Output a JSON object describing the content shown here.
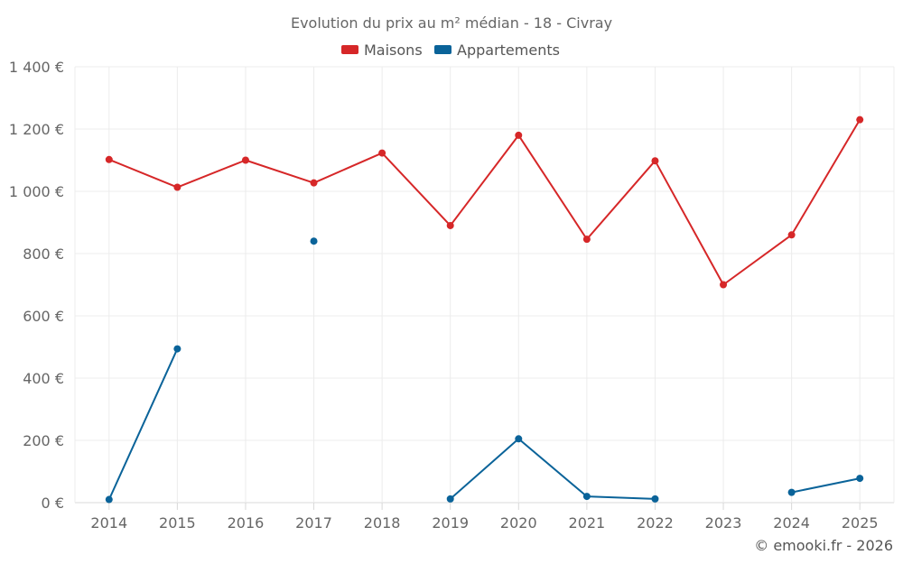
{
  "chart_data": {
    "type": "line",
    "title": "Evolution du prix au m² médian - 18 - Civray",
    "categories": [
      "2014",
      "2015",
      "2016",
      "2017",
      "2018",
      "2019",
      "2020",
      "2021",
      "2022",
      "2023",
      "2024",
      "2025"
    ],
    "ylim": [
      0,
      1400
    ],
    "yticks": [
      {
        "value": 0,
        "label": "0 €"
      },
      {
        "value": 200,
        "label": "200 €"
      },
      {
        "value": 400,
        "label": "400 €"
      },
      {
        "value": 600,
        "label": "600 €"
      },
      {
        "value": 800,
        "label": "800 €"
      },
      {
        "value": 1000,
        "label": "1 000 €"
      },
      {
        "value": 1200,
        "label": "1 200 €"
      },
      {
        "value": 1400,
        "label": "1 400 €"
      }
    ],
    "grid": true,
    "legend_position": "top-center",
    "series": [
      {
        "name": "Maisons",
        "color": "#d62728",
        "values": [
          1102,
          1013,
          1100,
          1027,
          1123,
          890,
          1180,
          846,
          1098,
          700,
          860,
          1230
        ]
      },
      {
        "name": "Appartements",
        "color": "#0a6399",
        "values": [
          10,
          494,
          null,
          840,
          null,
          12,
          205,
          20,
          12,
          null,
          33,
          78
        ]
      }
    ],
    "credit": "© emooki.fr - 2026"
  }
}
